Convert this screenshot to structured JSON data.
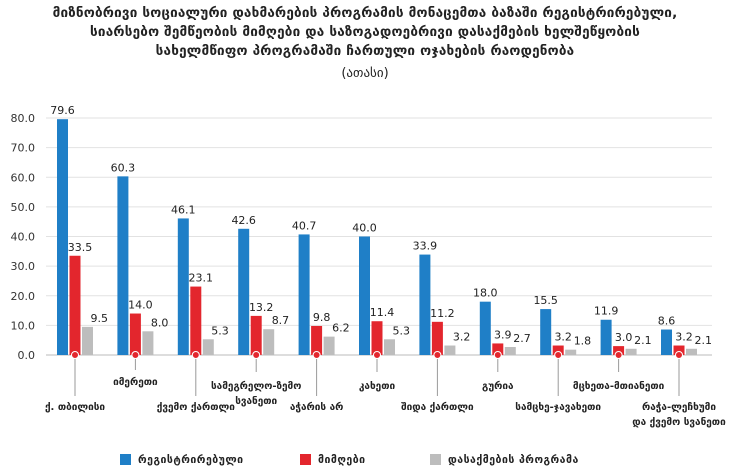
{
  "chart_data": {
    "type": "bar",
    "title_lines": [
      "მიზნობრივი სოციალური დახმარების პროგრამის მონაცემთა ბაზაში რეგისტრირებული,",
      "სიარსებო შემწეობის მიმღები და საზოგადოებრივი დასაქმების ხელშეწყობის",
      "სახელმწიფო პროგრამაში ჩართული ოჯახების რაოდენობა"
    ],
    "subtitle": "(ათასი)",
    "ylim": [
      0,
      80
    ],
    "yticks": [
      "0.0",
      "10.0",
      "20.0",
      "30.0",
      "40.0",
      "50.0",
      "60.0",
      "70.0",
      "80.0"
    ],
    "categories": [
      "ქ. თბილისი",
      "იმერეთი",
      "ქვემო ქართლი",
      "სამეგრელო-ზემო სვანეთი",
      "აჭარის არ",
      "კახეთი",
      "შიდა ქართლი",
      "გურია",
      "სამცხე-ჯავახეთი",
      "მცხეთა-მთიანეთი",
      "რაჭა-ლეჩხუმი და ქვემო სვანეთი"
    ],
    "series": [
      {
        "name": "რეგისტრირებული",
        "color": "#1f7fc7",
        "values": [
          79.6,
          60.3,
          46.1,
          42.6,
          40.7,
          40.0,
          33.9,
          18.0,
          15.5,
          11.9,
          8.6
        ],
        "labels": [
          "79.6",
          "60.3",
          "46.1",
          "42.6",
          "40.7",
          "40.0",
          "33.9",
          "18.0",
          "15.5",
          "11.9",
          "8.6"
        ]
      },
      {
        "name": "მიმღები",
        "color": "#e3262d",
        "values": [
          33.5,
          14.0,
          23.1,
          13.2,
          9.8,
          11.4,
          11.2,
          3.9,
          3.2,
          3.0,
          3.2
        ],
        "labels": [
          "33.5",
          "14.0",
          "23.1",
          "13.2",
          "9.8",
          "11.4",
          "11.2",
          "3.9",
          "3.2",
          "3.0",
          "3.2"
        ]
      },
      {
        "name": "დასაქმების პროგრამა",
        "color": "#bdbdbd",
        "values": [
          9.5,
          8.0,
          5.3,
          8.7,
          6.2,
          5.3,
          3.2,
          2.7,
          1.8,
          2.1,
          2.1
        ],
        "labels": [
          "9.5",
          "8.0",
          "5.3",
          "8.7",
          "6.2",
          "5.3",
          "3.2",
          "2.7",
          "1.8",
          "2.1",
          "2.1"
        ]
      }
    ]
  }
}
